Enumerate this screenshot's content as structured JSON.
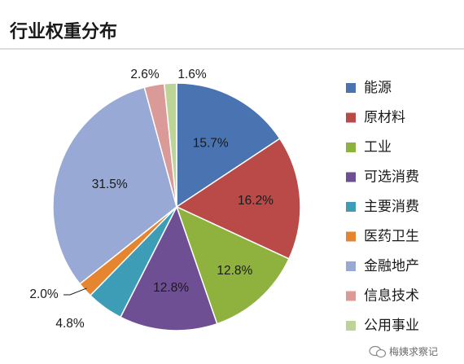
{
  "chart_data": {
    "type": "pie",
    "title": "行业权重分布",
    "start_angle_deg": 0,
    "direction": "clockwise",
    "slices": [
      {
        "label": "能源",
        "value": 15.7,
        "display": "15.7%",
        "color": "#4a74b1"
      },
      {
        "label": "原材料",
        "value": 16.2,
        "display": "16.2%",
        "color": "#b94a48"
      },
      {
        "label": "工业",
        "value": 12.8,
        "display": "12.8%",
        "color": "#8fb13d"
      },
      {
        "label": "可选消费",
        "value": 12.8,
        "display": "12.8%",
        "color": "#6f4f93"
      },
      {
        "label": "主要消费",
        "value": 4.8,
        "display": "4.8%",
        "color": "#3d9db6"
      },
      {
        "label": "医药卫生",
        "value": 2.0,
        "display": "2.0%",
        "color": "#e5852f"
      },
      {
        "label": "金融地产",
        "value": 31.5,
        "display": "31.5%",
        "color": "#97a9d4"
      },
      {
        "label": "信息技术",
        "value": 2.6,
        "display": "2.6%",
        "color": "#da9a98"
      },
      {
        "label": "公用事业",
        "value": 1.6,
        "display": "1.6%",
        "color": "#bed497"
      }
    ],
    "legend": {
      "placement": "right",
      "items": [
        "能源",
        "原材料",
        "工业",
        "可选消费",
        "主要消费",
        "医药卫生",
        "金融地产",
        "信息技术",
        "公用事业"
      ]
    }
  },
  "watermark": {
    "text": "梅姨求察记",
    "icon": "wechat-icon"
  },
  "colors": {
    "title_rule": "#c8c8c8",
    "slice_border": "#ffffff",
    "leader_line": "#1a1a1a"
  }
}
